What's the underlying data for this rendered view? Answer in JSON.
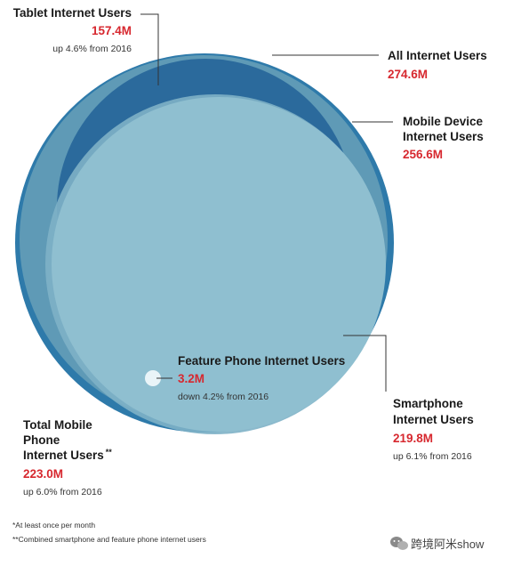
{
  "colors": {
    "all_internet": "#2e7aaa",
    "mobile_device": "#5f9ab6",
    "tablet": "#2b6a9c",
    "total_mobile_phone": "#7eb1c6",
    "smartphone": "#8fbfd0",
    "feature_phone": "#e9f4f8",
    "value_text": "#d7282f",
    "leader_line": "#333333"
  },
  "chart_data": {
    "type": "bubble-venn",
    "unit": "M",
    "series": [
      {
        "name": "All Internet Users",
        "value": 274.6,
        "value_label": "274.6M"
      },
      {
        "name": "Mobile Device Internet Users",
        "name_lines": [
          "Mobile Device",
          "Internet Users"
        ],
        "value": 256.6,
        "value_label": "256.6M"
      },
      {
        "name": "Tablet Internet Users",
        "value": 157.4,
        "value_label": "157.4M",
        "change": "up 4.6% from 2016"
      },
      {
        "name": "Total Mobile Phone Internet Users",
        "name_lines": [
          "Total Mobile",
          "Phone",
          "Internet Users"
        ],
        "marker": "**",
        "value": 223.0,
        "value_label": "223.0M",
        "change": "up 6.0% from 2016"
      },
      {
        "name": "Smartphone Internet Users",
        "name_lines": [
          "Smartphone",
          "Internet Users"
        ],
        "value": 219.8,
        "value_label": "219.8M",
        "change": "up 6.1% from 2016"
      },
      {
        "name": "Feature Phone Internet Users",
        "value": 3.2,
        "value_label": "3.2M",
        "change": "down 4.2% from 2016"
      }
    ]
  },
  "footnotes": {
    "note1": "*At least once per month",
    "note2": "**Combined smartphone and feature phone internet users"
  },
  "watermark": "跨境阿米show"
}
